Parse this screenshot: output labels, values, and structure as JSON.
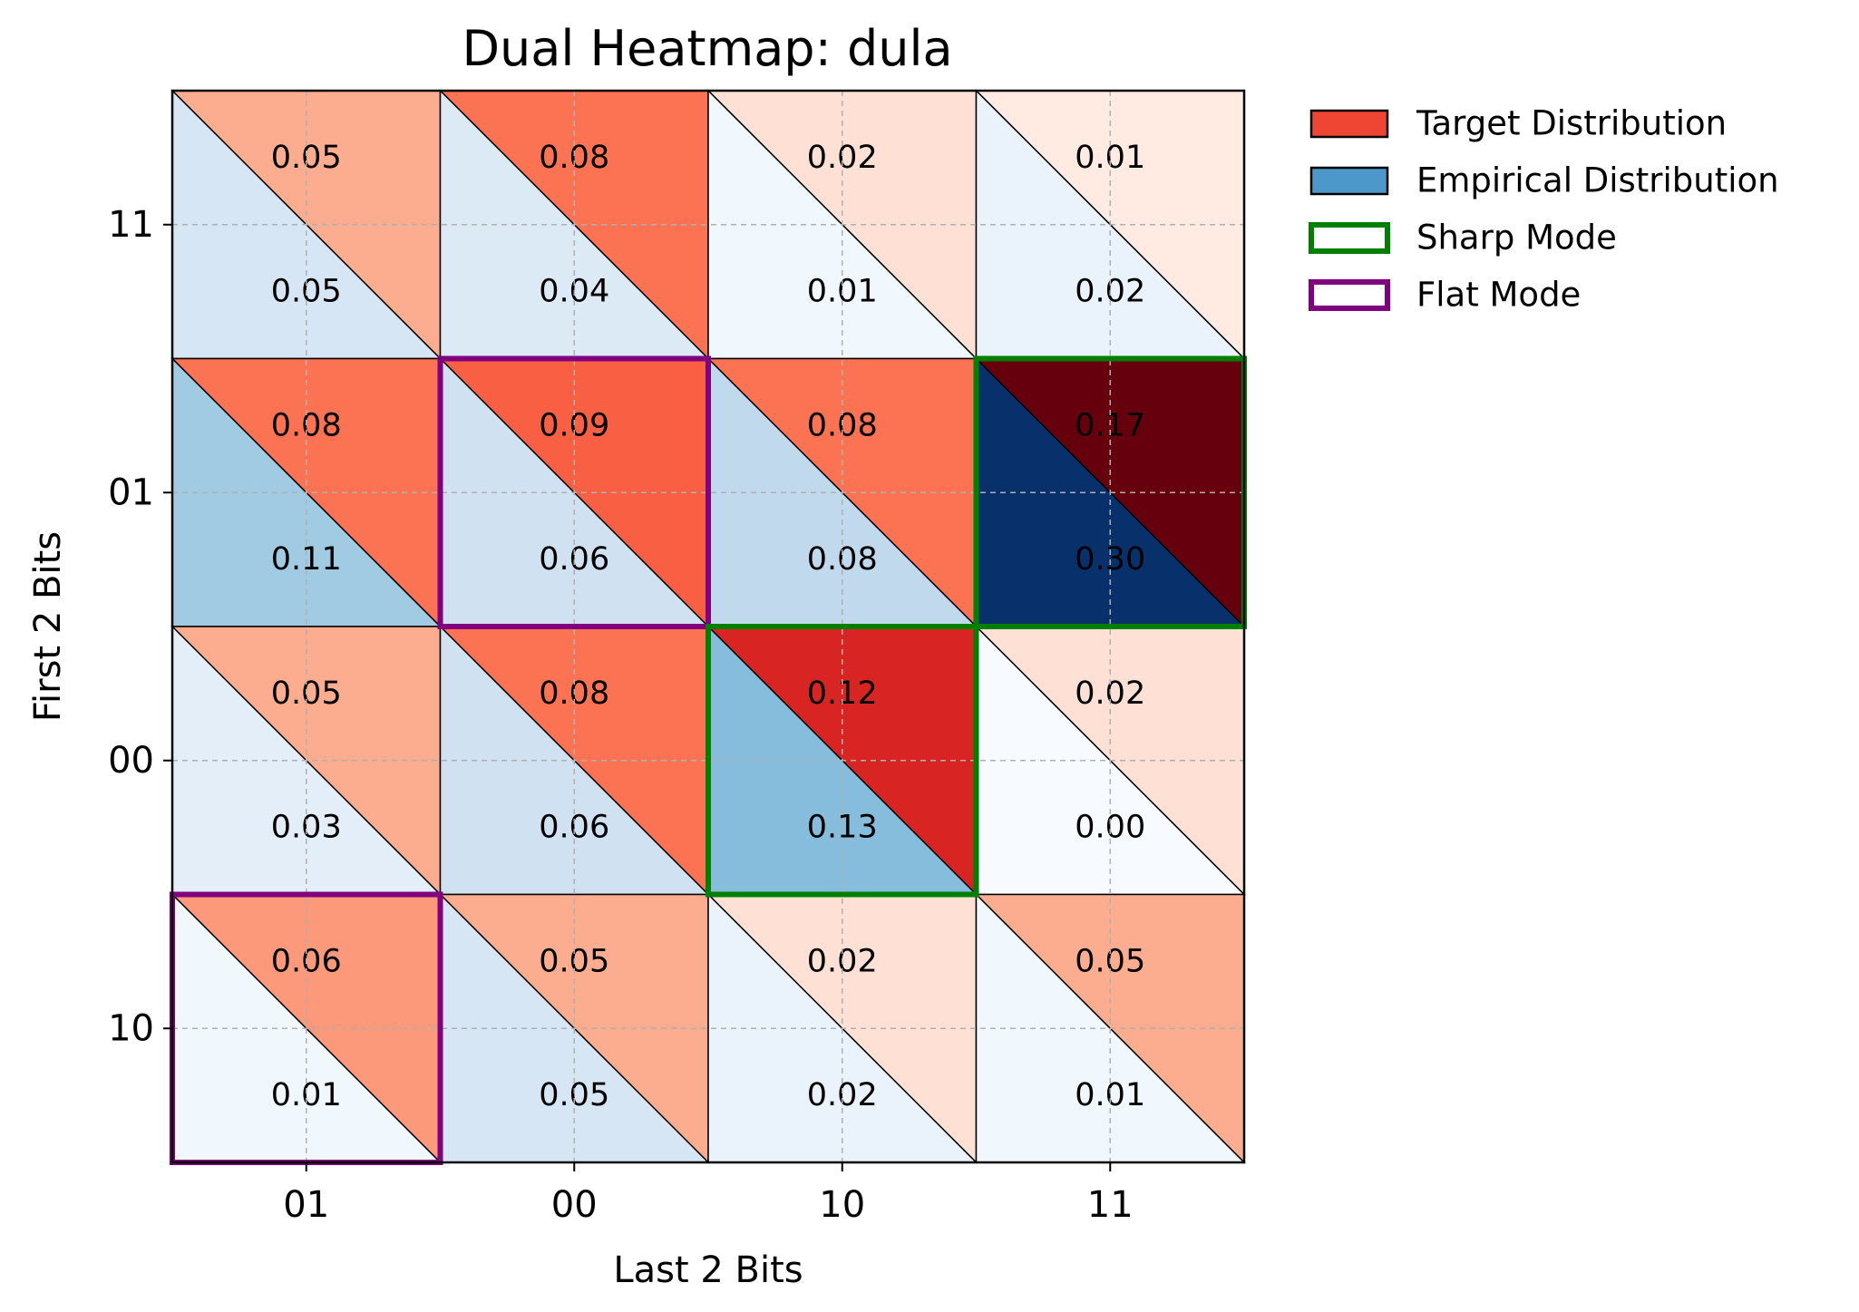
{
  "chart_data": {
    "type": "heatmap",
    "title": "Dual Heatmap: dula",
    "xlabel": "Last 2 Bits",
    "ylabel": "First 2 Bits",
    "x_categories": [
      "01",
      "00",
      "10",
      "11"
    ],
    "y_categories": [
      "11",
      "01",
      "00",
      "10"
    ],
    "target": [
      [
        0.05,
        0.08,
        0.02,
        0.01
      ],
      [
        0.08,
        0.09,
        0.08,
        0.17
      ],
      [
        0.05,
        0.08,
        0.12,
        0.02
      ],
      [
        0.06,
        0.05,
        0.02,
        0.05
      ]
    ],
    "empirical": [
      [
        0.05,
        0.04,
        0.01,
        0.02
      ],
      [
        0.11,
        0.06,
        0.08,
        0.3
      ],
      [
        0.03,
        0.06,
        0.13,
        0.0
      ],
      [
        0.01,
        0.05,
        0.02,
        0.01
      ]
    ],
    "target_colormap": "Reds",
    "empirical_colormap": "Blues",
    "sharp_modes": [
      {
        "row": "01",
        "col": "11"
      },
      {
        "row": "00",
        "col": "10"
      }
    ],
    "flat_modes": [
      {
        "row": "01",
        "col": "00"
      },
      {
        "row": "10",
        "col": "01"
      }
    ],
    "grid": true,
    "legend": {
      "placement": "outside-top-right",
      "entries": [
        {
          "label": "Target Distribution",
          "style": "filled",
          "color": "#ef4533"
        },
        {
          "label": "Empirical Distribution",
          "style": "filled",
          "color": "#4d98cb"
        },
        {
          "label": "Sharp Mode",
          "style": "outline",
          "color": "#008000"
        },
        {
          "label": "Flat Mode",
          "style": "outline",
          "color": "#800080"
        }
      ]
    }
  }
}
